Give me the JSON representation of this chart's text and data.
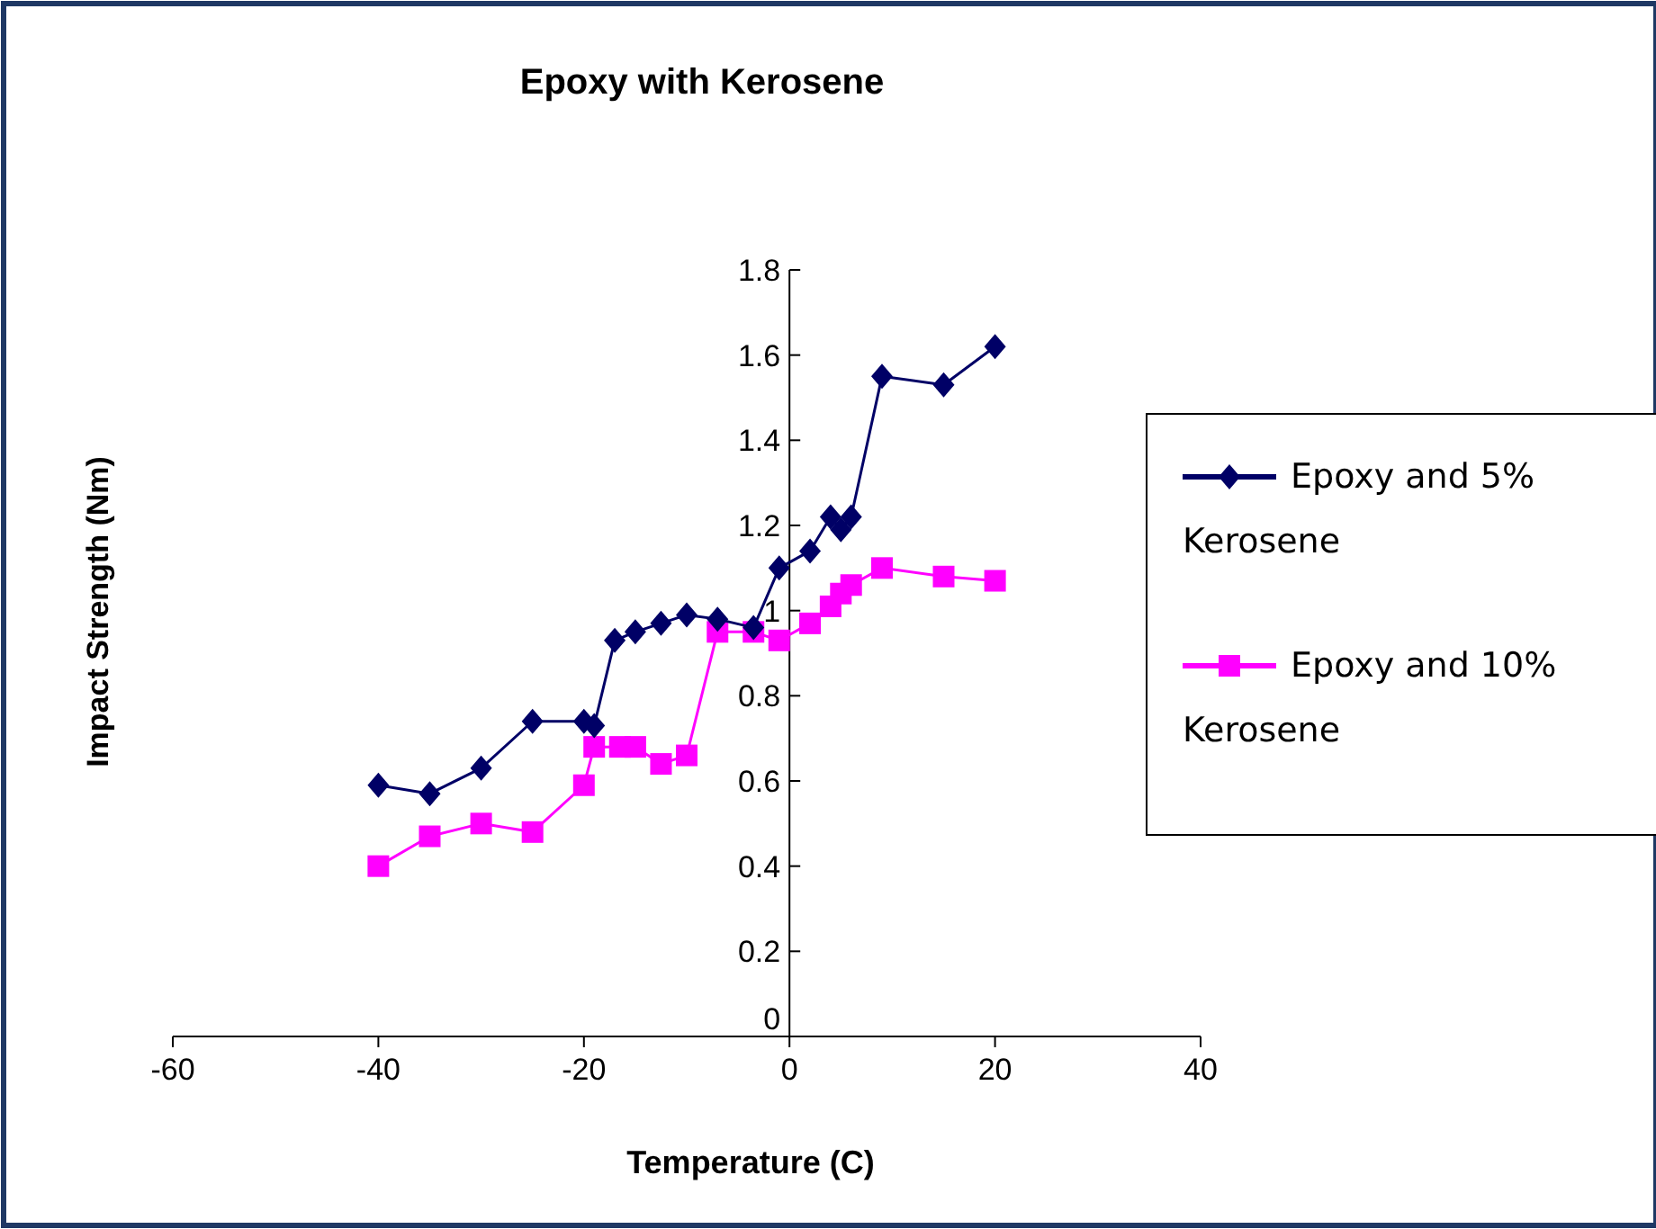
{
  "chart_data": {
    "type": "line",
    "title": "Epoxy with Kerosene",
    "xlabel": "Temperature (C)",
    "ylabel": "Impact  Strength (Nm)",
    "xlim": [
      -60,
      40
    ],
    "xticks": [
      -60,
      -40,
      -20,
      0,
      20,
      40
    ],
    "ylim": [
      0,
      1.8
    ],
    "yticks": [
      0,
      0.2,
      0.4,
      0.6,
      0.8,
      1,
      1.2,
      1.4,
      1.6,
      1.8
    ],
    "legend": "right",
    "grid": false,
    "series": [
      {
        "name": "Epoxy and 5% Kerosene",
        "color": "#000066",
        "marker": "diamond",
        "x": [
          -40,
          -35,
          -30,
          -25,
          -20,
          -19,
          -17,
          -15,
          -12.5,
          -10,
          -7,
          -3.5,
          -1,
          2,
          4,
          5,
          6,
          9,
          15,
          20
        ],
        "values": [
          0.59,
          0.57,
          0.63,
          0.74,
          0.74,
          0.73,
          0.93,
          0.95,
          0.97,
          0.99,
          0.98,
          0.96,
          1.1,
          1.14,
          1.22,
          1.19,
          1.22,
          1.55,
          1.53,
          1.62
        ]
      },
      {
        "name": "Epoxy and 10% Kerosene",
        "color": "#ff00ff",
        "marker": "square",
        "x": [
          -40,
          -35,
          -30,
          -25,
          -20,
          -19,
          -16.5,
          -15,
          -12.5,
          -10,
          -7,
          -3.5,
          -1,
          2,
          4,
          5,
          6,
          9,
          15,
          20
        ],
        "values": [
          0.4,
          0.47,
          0.5,
          0.48,
          0.59,
          0.68,
          0.68,
          0.68,
          0.64,
          0.66,
          0.95,
          0.95,
          0.93,
          0.97,
          1.01,
          1.04,
          1.06,
          1.1,
          1.08,
          1.07
        ]
      }
    ]
  }
}
